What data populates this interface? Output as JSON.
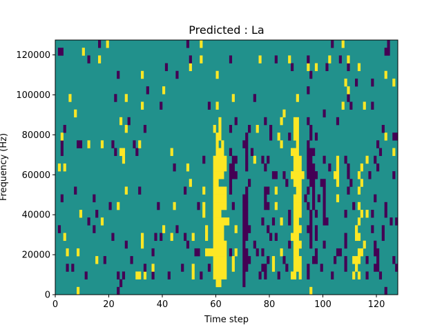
{
  "chart_data": {
    "type": "heatmap",
    "title": "Predicted : La",
    "xlabel": "Time step",
    "ylabel": "Frequency (Hz)",
    "xlim": [
      0,
      128
    ],
    "ylim": [
      0,
      127446
    ],
    "n_cols": 128,
    "n_rows": 33,
    "xticks": [
      0,
      20,
      40,
      60,
      80,
      100,
      120
    ],
    "yticks": [
      0,
      20000,
      40000,
      60000,
      80000,
      100000,
      120000
    ],
    "colormap": "viridis",
    "value_colors": {
      "-1": "#440154",
      "0": "#21918c",
      "1": "#fde725"
    },
    "default_value": 0,
    "cell_code": {
      "P": -1,
      "Y": 1
    },
    "nonzero_cells_by_row": {
      "32": "P16 Y19 P49 Y54 P103 Y107 P124",
      "31": "P1-2 Y10 P123-124",
      "30": "P12 Y16 P50 Y54 P65 Y76 P82 Y87 P94 Y102 P106 Y109",
      "29": "P41 Y50 P88 Y94 Y97 P101 P109 Y113",
      "28": "P23 Y32 P45 Y60 P95 Y123",
      "27": "Y108 P112 P118 Y126",
      "26": "P34 Y40 P94 Y109",
      "25": "Y5 P22 Y26 Y66 P74 Y90 P109",
      "24": "Y32 P39 P57 Y60 Y107 P110 Y115 P118",
      "23": "Y7 Y85 P100",
      "22": "Y24 P27 Y61 P67 P78 Y84 Y89-90 P94 P105",
      "21": "P3 Y26 P33 Y59 Y61 P65 P72 Y75 P80 Y89-90 P95 P122",
      "20": "Y2 Y60-61 P71 P80 Y83 P87 Y89-90 P95 P97 Y123 P126-127",
      "19": "P2 P8-9 Y12 Y17 P21 P29 Y31 Y60 Y62 P70-71 Y84 Y90 P94 P120",
      "18": "P2 P22 Y24-25 P30 Y43 Y60-62 P65 P71 P73 Y88-90 P94-96 P121 Y126",
      "17": "Y25 P55 Y59-63 P66-67 P71 Y74 P77 P79 Y89-91 P94-95 P100 Y105 P108 Y116 P119",
      "16": "Y1 Y3 P44 Y49 Y59-63 P65-66 P71 P78 Y89-91 P94-96 P102 Y105 P109 Y114 P120",
      "15": "Y59-62 P65-67 P81-82 P85 Y88-92 P94-97 Y104-105 P109 Y113 P117 P126",
      "14": "Y50 Y59-60 P65 P72 P86 Y89-91 P95-96 P99-100 Y105 P110 Y114",
      "13": "P7 Y26 P31 P48 Y55 Y59-63 P65 P71 P78-79 Y82 Y90-91 P94 P96 P100 P109 Y113",
      "12": "P2 P14 Y59-63 P70-71 P78 Y89-91 P93 P96 P98 P100 Y105 P119",
      "11": "P20 Y23 P38 Y44 P53 Y55 Y59-63 P66 P70-71 P78-79 Y82 Y89-91 P94 P96 P100 P111 Y113 P123",
      "10": "Y9 P15 Y55 Y59-61 P70-71 P87 Y89-91 P95 P97 P100 P108 Y114 Y116 P118 P123",
      "9": "P12 Y17 Y59-64 P70-71 P77 P81 Y84 P87 Y89-90 P95 P100-101 Y113 P125 P127",
      "8": "P1 P14 Y40 P45 Y56 Y59-62 Y67 P70-72 P79 Y89-91 P94-95 P97 Y112 P118 P122",
      "7": "Y3 P21 Y32 P37 P39 Y43 P48 Y51 Y56 Y59-62 P70-71 P80 P82 Y88-90 P95 P97 P108 Y112-113 P122",
      "6": "P26 Y32 P49 Y59-63 P70 P74 P87 Y89-91 P95 P100 P108 Y115 P119",
      "5": "Y4 Y8 P36 P52-53 Y56-63 P65 Y67 P70-71 P75 P77 Y84 Y89-90 P97 P105-106 Y113-114 P119-120",
      "4": "Y15 P18 P28 Y59-63 Y66 P70-72 P79 Y81 P85 Y89-91 P96-97 P104 P108 Y111-113 P116 P120 P126",
      "3": "P4 P6 P33 Y36 P47 Y51 P57 Y59-63 Y66 P70-71 P77-78 Y81 P86 Y89-91 P94 P99 P108 Y112 P119-120 P127",
      "2": "P11 P23 P25 Y30-31 Y33 P36 P42 Y51 P54 Y59-63 P70 P76 P78 P83 Y88-89 Y91 P94 P103 Y111 Y113 P116 P121",
      "1": "P24 Y60-61 P70",
      "0": "Y8 P23 Y95 P123"
    }
  }
}
